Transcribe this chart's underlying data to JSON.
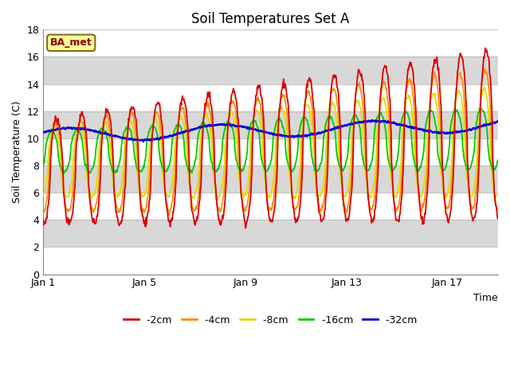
{
  "title": "Soil Temperatures Set A",
  "xlabel": "Time",
  "ylabel": "Soil Temperature (C)",
  "ylim": [
    0,
    18
  ],
  "xlim": [
    0,
    18
  ],
  "annotation": "BA_met",
  "line_colors": {
    "-2cm": "#dd0000",
    "-4cm": "#ff8c00",
    "-8cm": "#dddd00",
    "-16cm": "#00cc00",
    "-32cm": "#0000dd"
  },
  "legend_labels": [
    "-2cm",
    "-4cm",
    "-8cm",
    "-16cm",
    "-32cm"
  ],
  "background_color": "#ffffff",
  "band_color": "#d8d8d8",
  "title_fontsize": 12,
  "axis_fontsize": 9,
  "tick_fontsize": 9,
  "xtick_positions": [
    0,
    4,
    8,
    12,
    16
  ],
  "xtick_labels": [
    "Jan 1",
    "Jan 5",
    "Jan 9",
    "Jan 13",
    "Jan 17"
  ],
  "ytick_positions": [
    0,
    2,
    4,
    6,
    8,
    10,
    12,
    14,
    16,
    18
  ]
}
